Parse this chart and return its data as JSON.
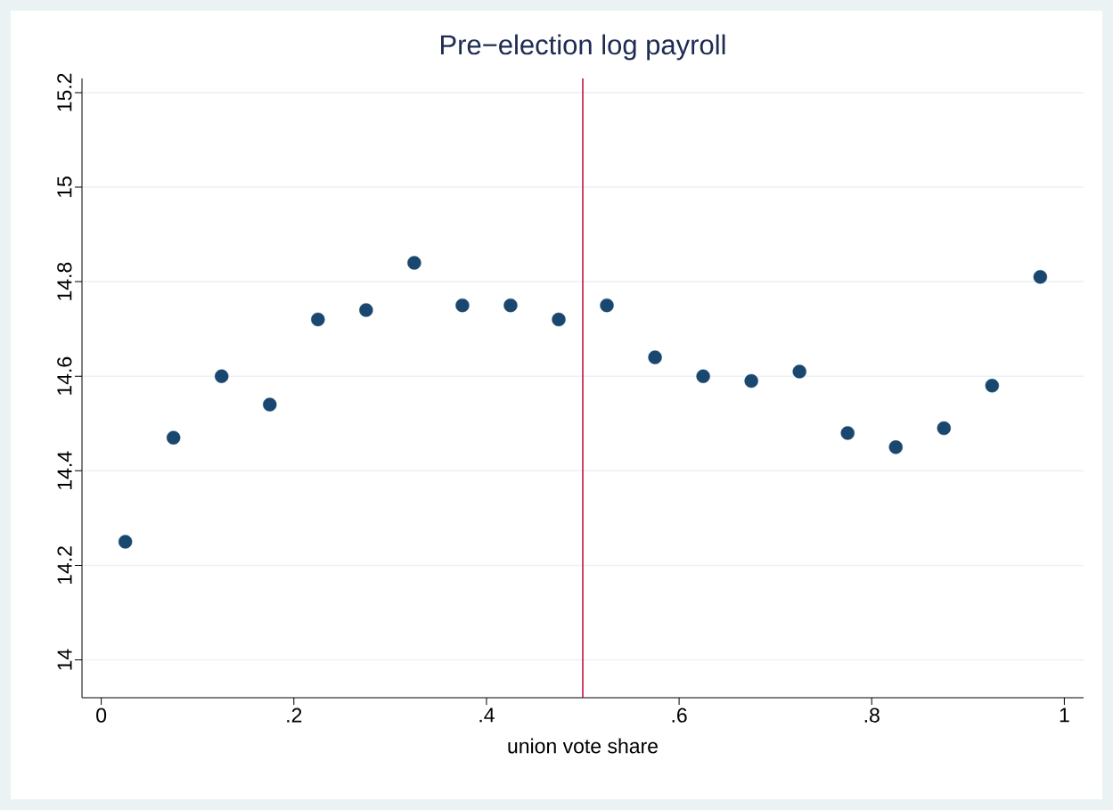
{
  "chart_data": {
    "type": "scatter",
    "title": "Pre−election log payroll",
    "xlabel": "union vote share",
    "x": [
      0.025,
      0.075,
      0.125,
      0.175,
      0.225,
      0.275,
      0.325,
      0.375,
      0.425,
      0.475,
      0.525,
      0.575,
      0.625,
      0.675,
      0.725,
      0.775,
      0.825,
      0.875,
      0.925,
      0.975
    ],
    "series": [
      {
        "color": "#1a476f",
        "values": [
          14.25,
          14.47,
          14.6,
          14.54,
          14.72,
          14.74,
          14.84,
          14.75,
          14.75,
          14.72,
          14.75,
          14.64,
          14.6,
          14.59,
          14.61,
          14.48,
          14.45,
          14.49,
          14.58,
          14.81
        ]
      }
    ],
    "marker": "circle",
    "grid": "y",
    "xlim": [
      -0.02,
      1.02
    ],
    "ylim": [
      13.92,
      15.23
    ],
    "xticks": [
      0,
      {
        "value": 0.2,
        "label": ".2"
      },
      {
        "value": 0.4,
        "label": ".4"
      },
      {
        "value": 0.6,
        "label": ".6"
      },
      {
        "value": 0.8,
        "label": ".8"
      },
      1
    ],
    "yticks": [
      14,
      14.2,
      14.4,
      14.6,
      14.8,
      15,
      15.2
    ],
    "ref_lines": [
      {
        "axis": "x",
        "value": 0.5,
        "color": "#c10534"
      }
    ]
  }
}
